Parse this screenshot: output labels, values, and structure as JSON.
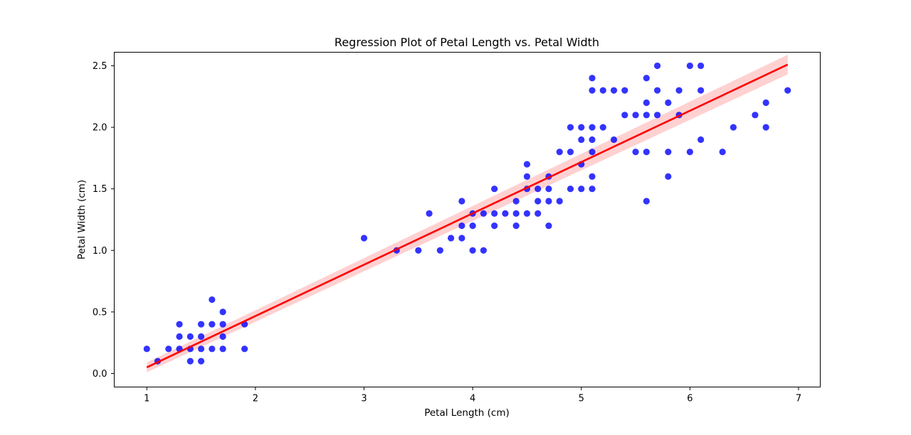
{
  "chart_data": {
    "type": "scatter",
    "title": "Regression Plot of Petal Length vs. Petal Width",
    "xlabel": "Petal Length (cm)",
    "ylabel": "Petal Width (cm)",
    "xlim": [
      0.7,
      7.2
    ],
    "ylim": [
      -0.11,
      2.61
    ],
    "xticks": [
      1,
      2,
      3,
      4,
      5,
      6,
      7
    ],
    "yticks": [
      0.0,
      0.5,
      1.0,
      1.5,
      2.0,
      2.5
    ],
    "xtick_labels": [
      "1",
      "2",
      "3",
      "4",
      "5",
      "6",
      "7"
    ],
    "ytick_labels": [
      "0.0",
      "0.5",
      "1.0",
      "1.5",
      "2.0",
      "2.5"
    ],
    "grid": false,
    "legend": "none",
    "colors": {
      "points": "#0000ff",
      "line": "#ff0000",
      "band": "#ffb3b3"
    },
    "series": [
      {
        "type": "scatter",
        "points": [
          [
            1.0,
            0.2
          ],
          [
            1.1,
            0.1
          ],
          [
            1.2,
            0.2
          ],
          [
            1.3,
            0.2
          ],
          [
            1.3,
            0.3
          ],
          [
            1.3,
            0.4
          ],
          [
            1.4,
            0.1
          ],
          [
            1.4,
            0.2
          ],
          [
            1.4,
            0.3
          ],
          [
            1.5,
            0.1
          ],
          [
            1.5,
            0.2
          ],
          [
            1.5,
            0.3
          ],
          [
            1.5,
            0.4
          ],
          [
            1.6,
            0.2
          ],
          [
            1.6,
            0.4
          ],
          [
            1.6,
            0.6
          ],
          [
            1.7,
            0.2
          ],
          [
            1.7,
            0.3
          ],
          [
            1.7,
            0.4
          ],
          [
            1.7,
            0.5
          ],
          [
            1.9,
            0.2
          ],
          [
            1.9,
            0.4
          ],
          [
            3.0,
            1.1
          ],
          [
            3.3,
            1.0
          ],
          [
            3.5,
            1.0
          ],
          [
            3.6,
            1.3
          ],
          [
            3.7,
            1.0
          ],
          [
            3.8,
            1.1
          ],
          [
            3.9,
            1.1
          ],
          [
            3.9,
            1.2
          ],
          [
            3.9,
            1.4
          ],
          [
            4.0,
            1.0
          ],
          [
            4.0,
            1.2
          ],
          [
            4.0,
            1.3
          ],
          [
            4.1,
            1.0
          ],
          [
            4.1,
            1.3
          ],
          [
            4.2,
            1.2
          ],
          [
            4.2,
            1.3
          ],
          [
            4.2,
            1.5
          ],
          [
            4.3,
            1.3
          ],
          [
            4.4,
            1.2
          ],
          [
            4.4,
            1.3
          ],
          [
            4.4,
            1.4
          ],
          [
            4.5,
            1.3
          ],
          [
            4.5,
            1.5
          ],
          [
            4.5,
            1.6
          ],
          [
            4.5,
            1.7
          ],
          [
            4.6,
            1.3
          ],
          [
            4.6,
            1.4
          ],
          [
            4.6,
            1.5
          ],
          [
            4.7,
            1.2
          ],
          [
            4.7,
            1.4
          ],
          [
            4.7,
            1.5
          ],
          [
            4.7,
            1.6
          ],
          [
            4.8,
            1.4
          ],
          [
            4.8,
            1.8
          ],
          [
            4.9,
            1.5
          ],
          [
            4.9,
            1.8
          ],
          [
            4.9,
            2.0
          ],
          [
            5.0,
            1.5
          ],
          [
            5.0,
            1.7
          ],
          [
            5.0,
            1.9
          ],
          [
            5.0,
            2.0
          ],
          [
            5.1,
            1.5
          ],
          [
            5.1,
            1.6
          ],
          [
            5.1,
            1.8
          ],
          [
            5.1,
            1.9
          ],
          [
            5.1,
            2.0
          ],
          [
            5.1,
            2.3
          ],
          [
            5.1,
            2.4
          ],
          [
            5.2,
            2.0
          ],
          [
            5.2,
            2.3
          ],
          [
            5.3,
            1.9
          ],
          [
            5.3,
            2.3
          ],
          [
            5.4,
            2.1
          ],
          [
            5.4,
            2.3
          ],
          [
            5.5,
            1.8
          ],
          [
            5.5,
            2.1
          ],
          [
            5.6,
            1.4
          ],
          [
            5.6,
            1.8
          ],
          [
            5.6,
            2.1
          ],
          [
            5.6,
            2.2
          ],
          [
            5.6,
            2.4
          ],
          [
            5.7,
            2.1
          ],
          [
            5.7,
            2.3
          ],
          [
            5.7,
            2.5
          ],
          [
            5.8,
            1.6
          ],
          [
            5.8,
            1.8
          ],
          [
            5.8,
            2.2
          ],
          [
            5.9,
            2.1
          ],
          [
            5.9,
            2.3
          ],
          [
            6.0,
            1.8
          ],
          [
            6.0,
            2.5
          ],
          [
            6.1,
            1.9
          ],
          [
            6.1,
            2.3
          ],
          [
            6.1,
            2.5
          ],
          [
            6.3,
            1.8
          ],
          [
            6.4,
            2.0
          ],
          [
            6.6,
            2.1
          ],
          [
            6.7,
            2.0
          ],
          [
            6.7,
            2.2
          ],
          [
            6.9,
            2.3
          ]
        ]
      },
      {
        "type": "line",
        "x": [
          1.0,
          6.9
        ],
        "y": [
          0.05,
          2.51
        ],
        "band_upper": [
          0.09,
          2.59
        ],
        "band_lower": [
          0.01,
          2.43
        ]
      }
    ]
  }
}
